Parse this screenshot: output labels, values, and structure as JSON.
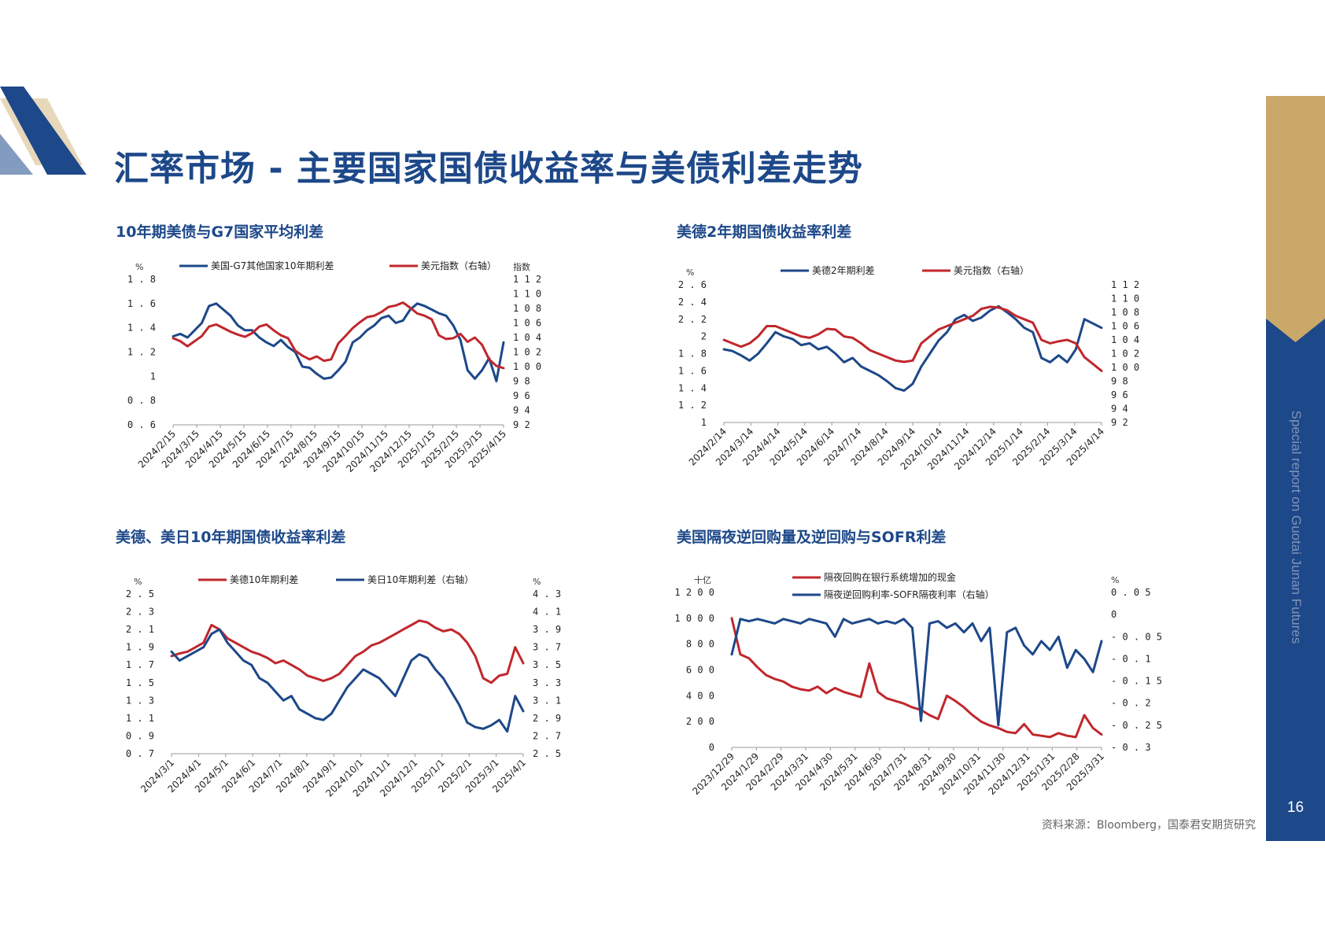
{
  "page_title": "汇率市场 - 主要国家国债收益率与美债利差走势",
  "sidebar": {
    "caption": "Special report on Guotai Junan Futures",
    "page_number": "16"
  },
  "source_note": "资料来源：Bloomberg，国泰君安期货研究",
  "colors": {
    "navy": "#1d4889",
    "red": "#c0272d",
    "gold": "#c9a86a",
    "title_blue": "#1d4889"
  },
  "panels": [
    {
      "title": "10年期美债与G7国家平均利差"
    },
    {
      "title": "美德2年期国债收益率利差"
    },
    {
      "title": "美德、美日10年期国债收益率利差"
    },
    {
      "title": "美国隔夜逆回购量及逆回购与SOFR利差"
    }
  ],
  "chart_data": [
    {
      "type": "line",
      "left_unit": "%",
      "right_unit": "指数",
      "ylim_left": [
        0.6,
        1.8
      ],
      "yticks_left": [
        0.6,
        0.8,
        1,
        1.2,
        1.4,
        1.6,
        1.8
      ],
      "ylim_right": [
        92,
        112
      ],
      "yticks_right": [
        92,
        94,
        96,
        98,
        100,
        102,
        104,
        106,
        108,
        110,
        112
      ],
      "x_ticks": [
        "2024/2/15",
        "2024/3/15",
        "2024/4/15",
        "2024/5/15",
        "2024/6/15",
        "2024/7/15",
        "2024/8/15",
        "2024/9/15",
        "2024/10/15",
        "2024/11/15",
        "2024/12/15",
        "2025/1/15",
        "2025/2/15",
        "2025/3/15",
        "2025/4/15"
      ],
      "series": [
        {
          "name": "美国-G7其他国家10年期利差",
          "color": "#1d4889",
          "axis": "left",
          "values": [
            1.33,
            1.35,
            1.32,
            1.38,
            1.44,
            1.58,
            1.6,
            1.55,
            1.5,
            1.42,
            1.38,
            1.38,
            1.32,
            1.28,
            1.25,
            1.3,
            1.24,
            1.2,
            1.08,
            1.07,
            1.02,
            0.98,
            0.99,
            1.05,
            1.12,
            1.28,
            1.32,
            1.38,
            1.42,
            1.48,
            1.5,
            1.44,
            1.46,
            1.55,
            1.6,
            1.58,
            1.55,
            1.52,
            1.5,
            1.42,
            1.3,
            1.05,
            0.98,
            1.05,
            1.15,
            0.96,
            1.28
          ]
        },
        {
          "name": "美元指数（右轴）",
          "color": "#c0272d",
          "axis": "right",
          "values": [
            103.9,
            103.5,
            102.8,
            103.5,
            104.2,
            105.5,
            105.8,
            105.3,
            104.8,
            104.4,
            104.1,
            104.6,
            105.5,
            105.8,
            105.0,
            104.3,
            103.9,
            102.2,
            101.5,
            101.0,
            101.4,
            100.8,
            101.0,
            103.2,
            104.2,
            105.3,
            106.1,
            106.8,
            107.0,
            107.5,
            108.2,
            108.4,
            108.8,
            108.1,
            107.3,
            107.0,
            106.5,
            104.3,
            103.8,
            103.9,
            104.5,
            103.4,
            104.0,
            103.0,
            101.0,
            100.1,
            99.8
          ]
        }
      ]
    },
    {
      "type": "line",
      "left_unit": "%",
      "right_unit": "",
      "ylim_left": [
        1,
        2.6
      ],
      "yticks_left": [
        1,
        1.2,
        1.4,
        1.6,
        1.8,
        2,
        2.2,
        2.4,
        2.6
      ],
      "ylim_right": [
        92,
        112
      ],
      "yticks_right": [
        92,
        94,
        96,
        98,
        100,
        102,
        104,
        106,
        108,
        110,
        112
      ],
      "x_ticks": [
        "2024/2/14",
        "2024/3/14",
        "2024/4/14",
        "2024/5/14",
        "2024/6/14",
        "2024/7/14",
        "2024/8/14",
        "2024/9/14",
        "2024/10/14",
        "2024/11/14",
        "2024/12/14",
        "2025/1/14",
        "2025/2/14",
        "2025/3/14",
        "2025/4/14"
      ],
      "series": [
        {
          "name": "美德2年期利差",
          "color": "#1d4889",
          "axis": "left",
          "values": [
            1.85,
            1.83,
            1.78,
            1.72,
            1.8,
            1.92,
            2.05,
            2.0,
            1.97,
            1.9,
            1.92,
            1.85,
            1.88,
            1.8,
            1.7,
            1.75,
            1.65,
            1.6,
            1.55,
            1.48,
            1.4,
            1.37,
            1.45,
            1.65,
            1.8,
            1.95,
            2.05,
            2.2,
            2.25,
            2.18,
            2.22,
            2.3,
            2.35,
            2.28,
            2.2,
            2.1,
            2.05,
            1.75,
            1.7,
            1.78,
            1.7,
            1.85,
            2.2,
            2.15,
            2.1
          ]
        },
        {
          "name": "美元指数（右轴）",
          "color": "#c0272d",
          "axis": "right",
          "values": [
            104.0,
            103.5,
            103.0,
            103.5,
            104.5,
            106.0,
            106.0,
            105.5,
            105.0,
            104.5,
            104.3,
            104.8,
            105.6,
            105.5,
            104.5,
            104.3,
            103.5,
            102.5,
            102.0,
            101.5,
            101.0,
            100.8,
            101.0,
            103.5,
            104.5,
            105.5,
            106.0,
            106.5,
            107.0,
            107.5,
            108.5,
            108.8,
            108.7,
            108.3,
            107.5,
            107.0,
            106.5,
            104.0,
            103.5,
            103.8,
            104.0,
            103.5,
            101.5,
            100.5,
            99.5
          ]
        }
      ]
    },
    {
      "type": "line",
      "left_unit": "%",
      "right_unit": "%",
      "ylim_left": [
        0.7,
        2.5
      ],
      "yticks_left": [
        0.7,
        0.9,
        1.1,
        1.3,
        1.5,
        1.7,
        1.9,
        2.1,
        2.3,
        2.5
      ],
      "ylim_right": [
        2.5,
        4.3
      ],
      "yticks_right": [
        2.5,
        2.7,
        2.9,
        3.1,
        3.3,
        3.5,
        3.7,
        3.9,
        4.1,
        4.3
      ],
      "x_ticks": [
        "2024/3/1",
        "2024/4/1",
        "2024/5/1",
        "2024/6/1",
        "2024/7/1",
        "2024/8/1",
        "2024/9/1",
        "2024/10/1",
        "2024/11/1",
        "2024/12/1",
        "2025/1/1",
        "2025/2/1",
        "2025/3/1",
        "2025/4/1"
      ],
      "series": [
        {
          "name": "美德10年期利差",
          "color": "#c0272d",
          "axis": "left",
          "values": [
            1.8,
            1.83,
            1.85,
            1.9,
            1.95,
            2.15,
            2.1,
            2.0,
            1.95,
            1.9,
            1.85,
            1.82,
            1.78,
            1.72,
            1.75,
            1.7,
            1.65,
            1.58,
            1.55,
            1.52,
            1.55,
            1.6,
            1.7,
            1.8,
            1.85,
            1.92,
            1.95,
            2.0,
            2.05,
            2.1,
            2.15,
            2.2,
            2.18,
            2.12,
            2.08,
            2.1,
            2.05,
            1.95,
            1.8,
            1.55,
            1.5,
            1.58,
            1.6,
            1.9,
            1.72
          ]
        },
        {
          "name": "美日10年期利差（右轴）",
          "color": "#1d4889",
          "axis": "right",
          "values": [
            3.65,
            3.55,
            3.6,
            3.65,
            3.7,
            3.85,
            3.9,
            3.75,
            3.65,
            3.55,
            3.5,
            3.35,
            3.3,
            3.2,
            3.1,
            3.15,
            3.0,
            2.95,
            2.9,
            2.88,
            2.95,
            3.1,
            3.25,
            3.35,
            3.45,
            3.4,
            3.35,
            3.25,
            3.15,
            3.35,
            3.55,
            3.62,
            3.58,
            3.45,
            3.35,
            3.2,
            3.05,
            2.85,
            2.8,
            2.78,
            2.82,
            2.88,
            2.75,
            3.15,
            2.98
          ]
        }
      ]
    },
    {
      "type": "line",
      "left_unit": "十亿",
      "right_unit": "%",
      "ylim_left": [
        0,
        1200
      ],
      "yticks_left": [
        0,
        200,
        400,
        600,
        800,
        1000,
        1200
      ],
      "ylim_right": [
        -0.3,
        0.05
      ],
      "yticks_right": [
        0.05,
        0,
        -0.05,
        -0.1,
        -0.15,
        -0.2,
        -0.25,
        -0.3
      ],
      "x_ticks": [
        "2023/12/29",
        "2024/1/29",
        "2024/2/29",
        "2024/3/31",
        "2024/4/30",
        "2024/5/31",
        "2024/6/30",
        "2024/7/31",
        "2024/8/31",
        "2024/9/30",
        "2024/10/31",
        "2024/11/30",
        "2024/12/31",
        "2025/1/31",
        "2025/2/28",
        "2025/3/31"
      ],
      "series": [
        {
          "name": "隔夜回购在银行系统增加的现金",
          "color": "#c0272d",
          "axis": "left",
          "values": [
            1000,
            720,
            690,
            620,
            560,
            530,
            510,
            470,
            450,
            440,
            470,
            420,
            460,
            430,
            410,
            390,
            650,
            430,
            380,
            360,
            340,
            310,
            290,
            250,
            220,
            400,
            360,
            310,
            250,
            200,
            170,
            150,
            120,
            110,
            180,
            100,
            90,
            80,
            110,
            90,
            80,
            250,
            150,
            100
          ]
        },
        {
          "name": "隔夜逆回购利率-SOFR隔夜利率（右轴）",
          "color": "#1d4889",
          "axis": "right",
          "values": [
            -0.09,
            -0.01,
            -0.015,
            -0.01,
            -0.015,
            -0.02,
            -0.01,
            -0.015,
            -0.02,
            -0.01,
            -0.015,
            -0.02,
            -0.05,
            -0.01,
            -0.02,
            -0.015,
            -0.01,
            -0.02,
            -0.015,
            -0.02,
            -0.01,
            -0.03,
            -0.24,
            -0.02,
            -0.015,
            -0.03,
            -0.02,
            -0.04,
            -0.02,
            -0.06,
            -0.03,
            -0.25,
            -0.04,
            -0.03,
            -0.07,
            -0.09,
            -0.06,
            -0.08,
            -0.05,
            -0.12,
            -0.08,
            -0.1,
            -0.13,
            -0.06
          ]
        }
      ]
    }
  ]
}
